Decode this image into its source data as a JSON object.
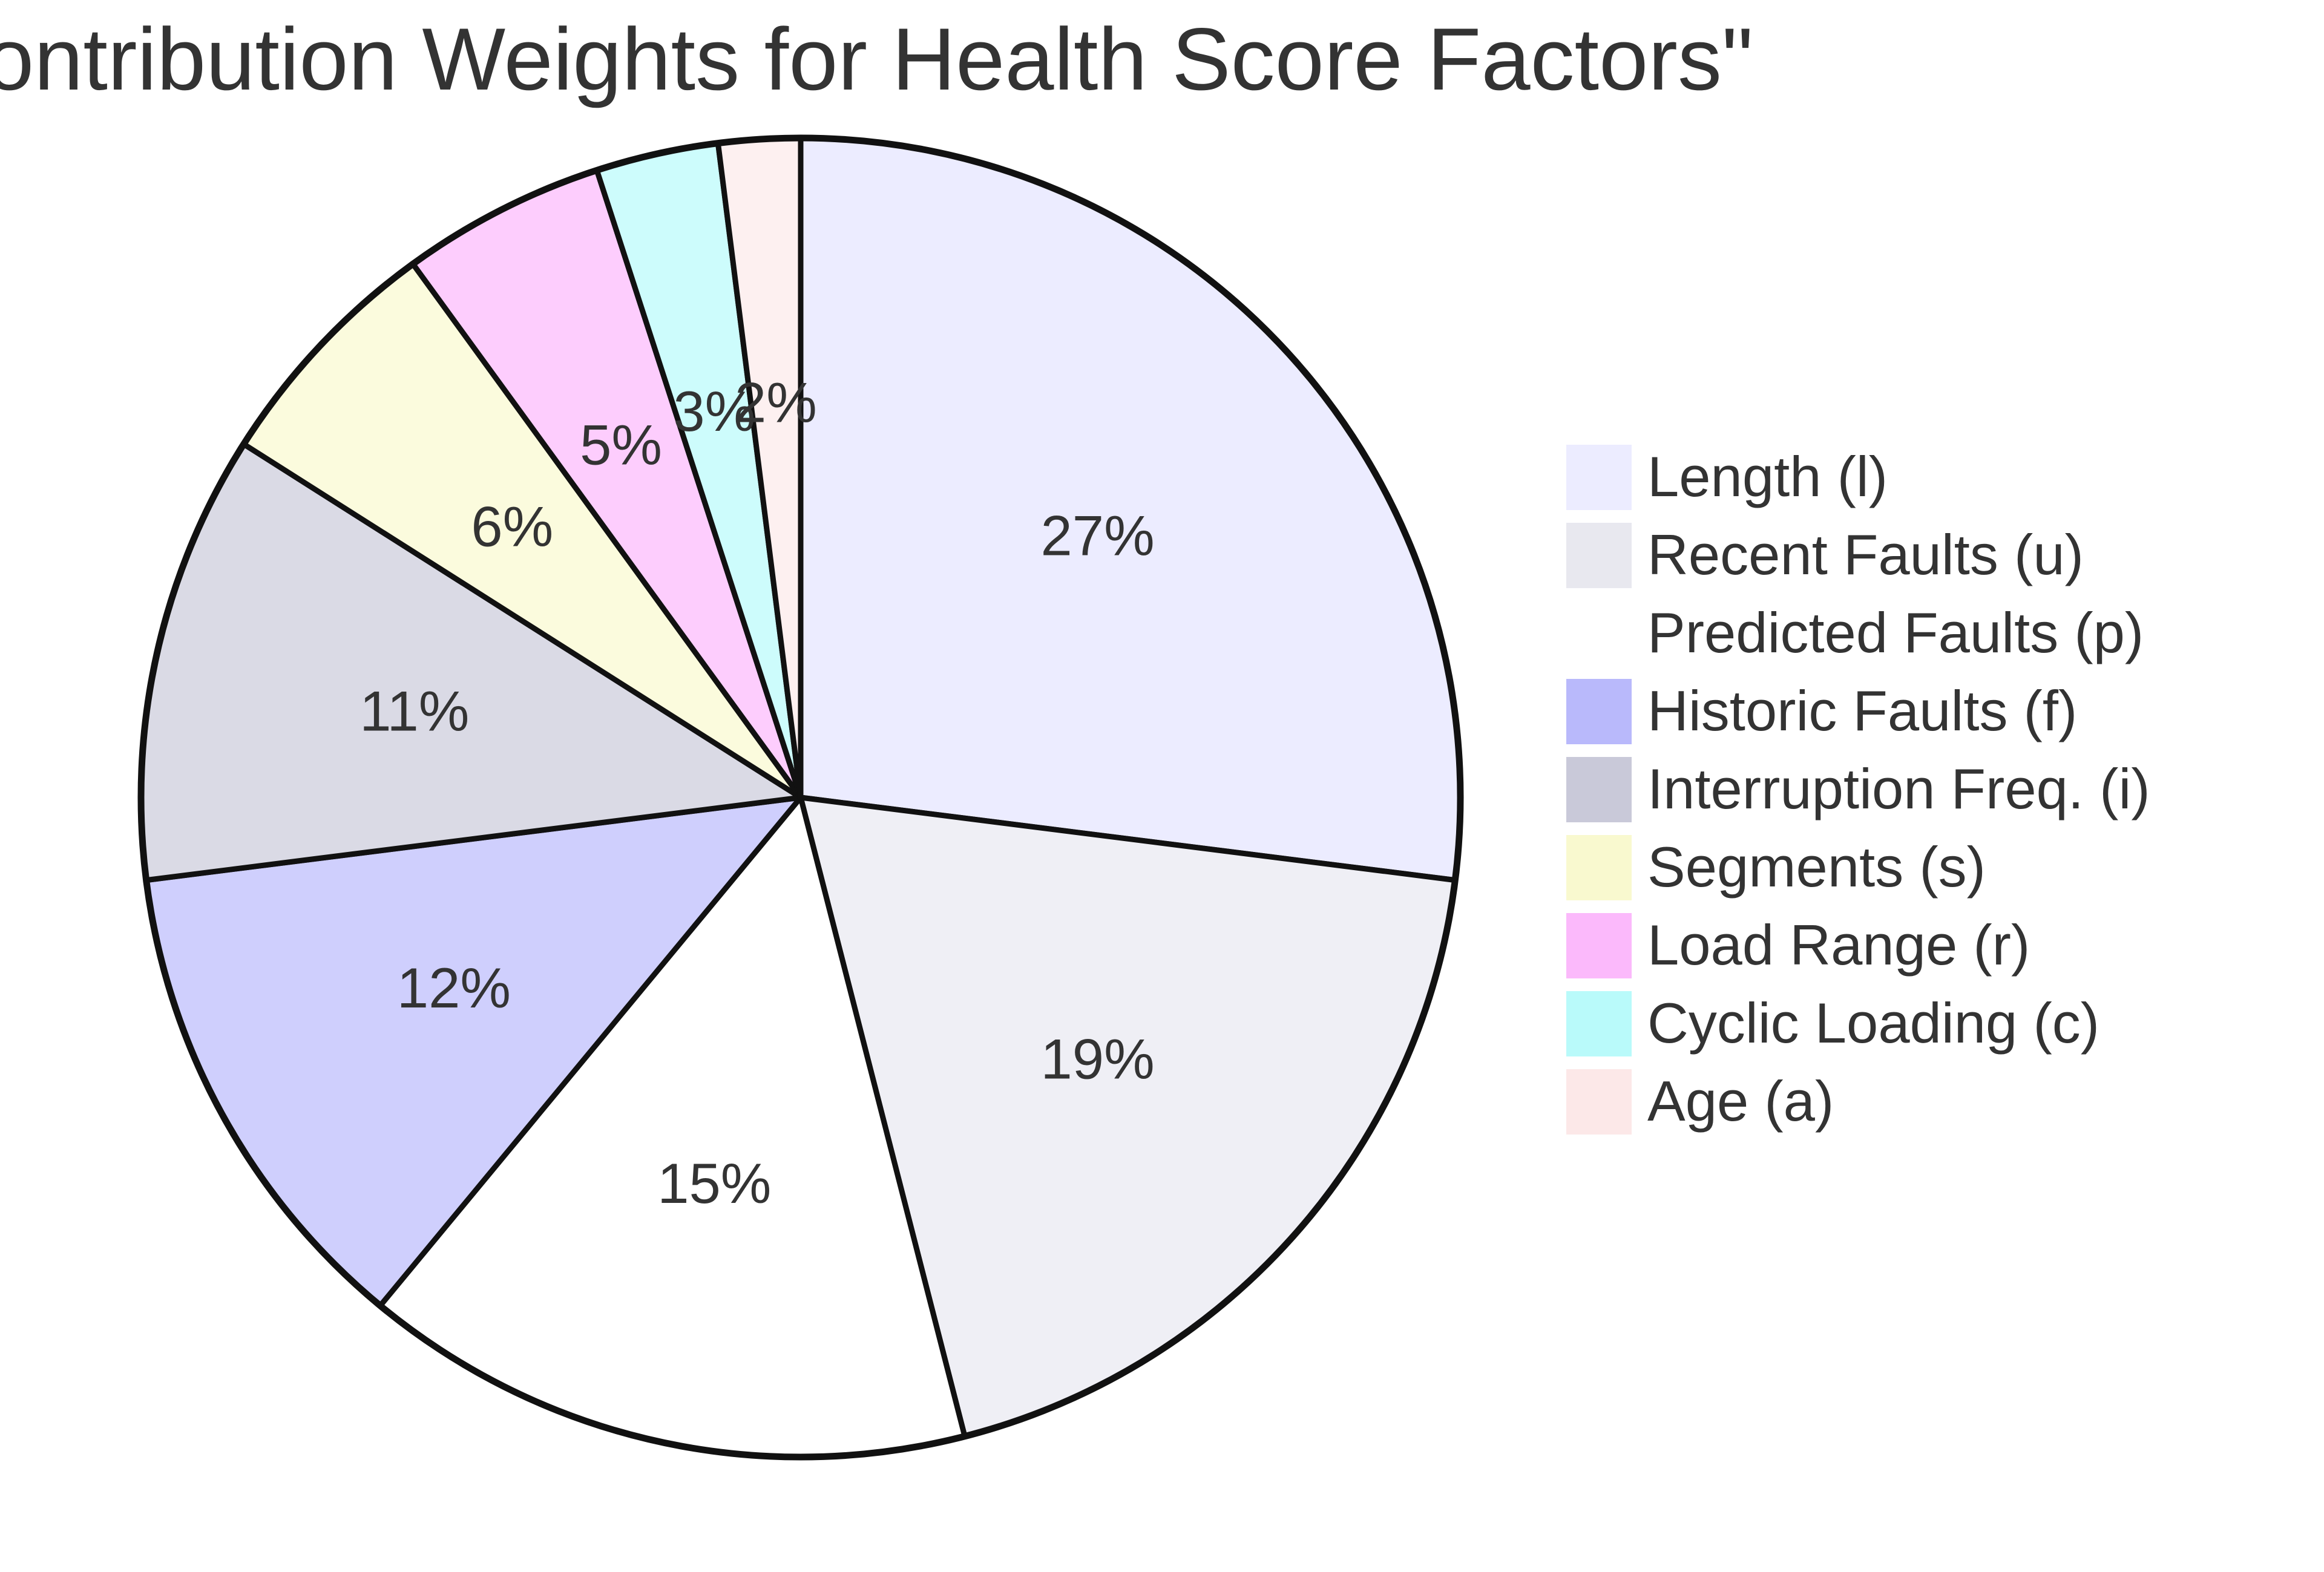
{
  "chart_data": {
    "type": "pie",
    "title": "ontribution Weights for Health Score Factors\"",
    "slices": [
      {
        "label": "Length (l)",
        "value": 27,
        "display": "27%",
        "color": "#ECECFF",
        "legend_color": "#ECECFF"
      },
      {
        "label": "Recent Faults (u)",
        "value": 19,
        "display": "19%",
        "color": "#EFEFF5",
        "legend_color": "#E8E8EF"
      },
      {
        "label": "Predicted Faults (p)",
        "value": 15,
        "display": "15%",
        "color": "#FFFFFF",
        "legend_color": "#FFFFFF"
      },
      {
        "label": "Historic Faults (f)",
        "value": 12,
        "display": "12%",
        "color": "#CFCFFD",
        "legend_color": "#B9B9FB"
      },
      {
        "label": "Interruption Freq. (i)",
        "value": 11,
        "display": "11%",
        "color": "#DADAE5",
        "legend_color": "#C9C9D9"
      },
      {
        "label": "Segments (s)",
        "value": 6,
        "display": "6%",
        "color": "#FBFBDD",
        "legend_color": "#F9F9CF"
      },
      {
        "label": "Load Range (r)",
        "value": 5,
        "display": "5%",
        "color": "#FDCDFD",
        "legend_color": "#FBB9FB"
      },
      {
        "label": "Cyclic Loading (c)",
        "value": 3,
        "display": "3%",
        "color": "#CDFCFC",
        "legend_color": "#B9FAFA"
      },
      {
        "label": "Age (a)",
        "value": 2,
        "display": "2%",
        "color": "#FDF0F0",
        "legend_color": "#FCE8E8"
      }
    ],
    "start_position": "top",
    "direction": "clockwise",
    "legend": "right"
  }
}
